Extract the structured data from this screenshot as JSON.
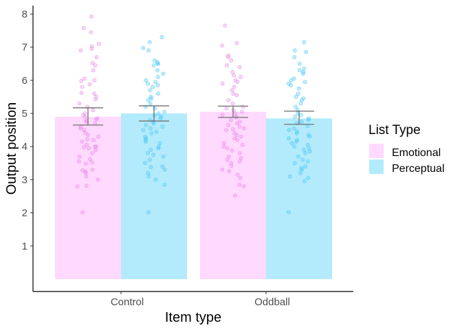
{
  "chart_data": {
    "type": "bar",
    "xlabel": "Item type",
    "ylabel": "Output position",
    "categories": [
      "Control",
      "Oddball"
    ],
    "yticks": [
      1,
      2,
      3,
      4,
      5,
      6,
      7,
      8
    ],
    "ylim": [
      0,
      8.3
    ],
    "grid": false,
    "legend": {
      "title": "List Type",
      "placement": "right"
    },
    "colors": {
      "Emotional": "#ffd9fe",
      "Perceptual": "#b3ebfc",
      "Emotional_points": "#e98ce6",
      "Perceptual_points": "#4fc8f5",
      "errorbar": "#6f6f6f",
      "axis": "#000000"
    },
    "series": [
      {
        "name": "Emotional",
        "values": [
          4.9,
          5.05
        ],
        "error_low": [
          4.65,
          4.88
        ],
        "error_high": [
          5.17,
          5.22
        ],
        "points": [
          [
            7.92,
            7.58,
            7.45,
            7.1,
            7.02,
            6.95,
            6.9,
            6.7,
            6.52,
            6.45,
            6.3,
            6.05,
            6.0,
            5.98,
            5.88,
            5.8,
            5.62,
            5.6,
            5.5,
            5.42,
            5.3,
            5.2,
            5.1,
            5.0,
            4.95,
            4.9,
            4.85,
            4.82,
            4.78,
            4.75,
            4.7,
            4.6,
            4.55,
            4.5,
            4.42,
            4.35,
            4.3,
            4.22,
            4.2,
            4.15,
            4.05,
            4.0,
            4.0,
            3.98,
            3.95,
            3.9,
            3.8,
            3.7,
            3.62,
            3.55,
            3.52,
            3.48,
            3.3,
            3.28,
            3.25,
            3.2,
            3.1,
            3.0,
            2.82,
            2.8,
            2.02
          ],
          [
            7.65,
            7.12,
            7.05,
            6.75,
            6.7,
            6.6,
            6.45,
            6.4,
            6.25,
            6.15,
            6.1,
            6.0,
            5.95,
            5.9,
            5.8,
            5.7,
            5.6,
            5.55,
            5.4,
            5.3,
            5.2,
            5.15,
            5.1,
            5.05,
            5.0,
            4.95,
            4.9,
            4.88,
            4.8,
            4.75,
            4.7,
            4.65,
            4.6,
            4.55,
            4.52,
            4.5,
            4.4,
            4.35,
            4.3,
            4.25,
            4.2,
            4.1,
            4.05,
            4.0,
            3.95,
            3.88,
            3.8,
            3.7,
            3.65,
            3.6,
            3.55,
            3.5,
            3.42,
            3.3,
            3.25,
            3.15,
            3.05,
            2.85,
            2.8,
            2.52
          ]
        ]
      },
      {
        "name": "Perceptual",
        "values": [
          5.0,
          4.85
        ],
        "error_low": [
          4.77,
          4.67
        ],
        "error_high": [
          5.23,
          5.07
        ],
        "points": [
          [
            7.3,
            7.15,
            6.98,
            6.9,
            6.6,
            6.55,
            6.5,
            6.5,
            6.45,
            6.3,
            6.2,
            6.1,
            6.0,
            5.95,
            5.9,
            5.85,
            5.8,
            5.7,
            5.6,
            5.5,
            5.45,
            5.4,
            5.3,
            5.2,
            5.15,
            5.05,
            5.0,
            4.95,
            4.9,
            4.85,
            4.8,
            4.75,
            4.7,
            4.65,
            4.6,
            4.55,
            4.5,
            4.45,
            4.4,
            4.3,
            4.25,
            4.2,
            4.15,
            4.1,
            4.0,
            3.95,
            3.9,
            3.8,
            3.75,
            3.7,
            3.6,
            3.5,
            3.4,
            3.38,
            3.3,
            3.2,
            3.1,
            3.0,
            2.85,
            2.02
          ],
          [
            7.15,
            6.9,
            6.85,
            6.7,
            6.5,
            6.35,
            6.3,
            6.25,
            6.2,
            6.05,
            6.0,
            5.95,
            5.9,
            5.85,
            5.75,
            5.6,
            5.5,
            5.45,
            5.4,
            5.3,
            5.2,
            5.1,
            5.0,
            4.95,
            4.9,
            4.85,
            4.8,
            4.75,
            4.7,
            4.62,
            4.55,
            4.5,
            4.45,
            4.4,
            4.35,
            4.3,
            4.25,
            4.2,
            4.15,
            4.1,
            4.05,
            4.0,
            3.95,
            3.9,
            3.85,
            3.8,
            3.7,
            3.6,
            3.55,
            3.5,
            3.4,
            3.35,
            3.3,
            3.2,
            3.1,
            3.05,
            2.95,
            2.02
          ]
        ]
      }
    ]
  }
}
